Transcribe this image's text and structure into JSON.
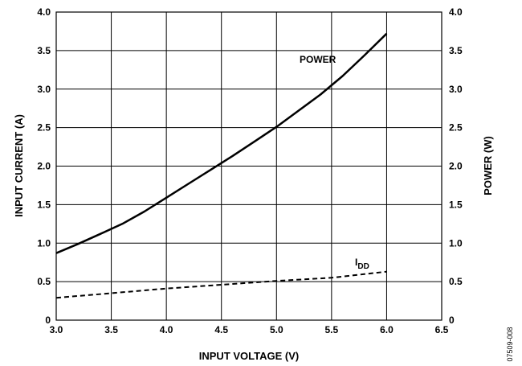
{
  "chart_data": {
    "type": "line",
    "xlabel": "INPUT VOLTAGE (V)",
    "ylabel": "INPUT CURRENT (A)",
    "y2label": "POWER (W)",
    "xlim": [
      3.0,
      6.5
    ],
    "ylim": [
      0,
      4.0
    ],
    "y2lim": [
      0,
      4.0
    ],
    "x_ticks": [
      "3.0",
      "3.5",
      "4.0",
      "4.5",
      "5.0",
      "5.5",
      "6.0",
      "6.5"
    ],
    "y_ticks": [
      "0",
      "0.5",
      "1.0",
      "1.5",
      "2.0",
      "2.5",
      "3.0",
      "3.5",
      "4.0"
    ],
    "y2_ticks": [
      "0",
      "0.5",
      "1.0",
      "1.5",
      "2.0",
      "2.5",
      "3.0",
      "3.5",
      "4.0"
    ],
    "grid": true,
    "series": [
      {
        "name": "POWER",
        "axis": "right",
        "style": "solid",
        "x": [
          3.0,
          3.2,
          3.4,
          3.6,
          3.8,
          4.0,
          4.2,
          4.4,
          4.6,
          4.8,
          5.0,
          5.2,
          5.4,
          5.6,
          5.8,
          6.0
        ],
        "y": [
          0.87,
          0.99,
          1.12,
          1.25,
          1.41,
          1.59,
          1.77,
          1.95,
          2.13,
          2.32,
          2.51,
          2.72,
          2.93,
          3.17,
          3.44,
          3.72
        ]
      },
      {
        "name": "I",
        "name_subscript": "DD",
        "axis": "left",
        "style": "dashed",
        "x": [
          3.0,
          3.5,
          4.0,
          4.5,
          5.0,
          5.5,
          6.0
        ],
        "y": [
          0.29,
          0.35,
          0.41,
          0.46,
          0.51,
          0.55,
          0.63
        ]
      }
    ]
  },
  "figure_id": "07509-008"
}
